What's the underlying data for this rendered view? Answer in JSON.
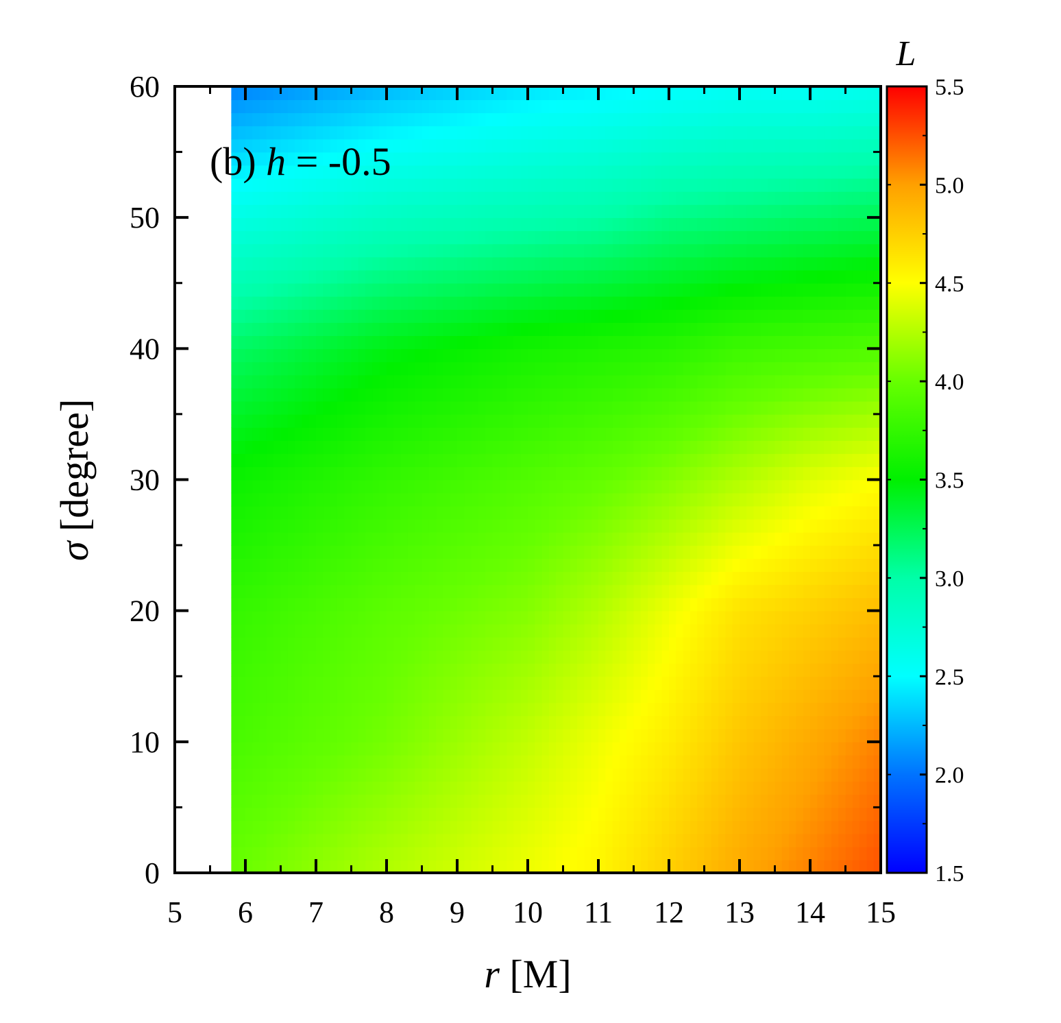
{
  "chart_data": {
    "type": "heatmap",
    "title": "",
    "panel_label": {
      "prefix": "(b) ",
      "variable": "h",
      "relation": " = -0.5"
    },
    "xlabel": {
      "variable": "r",
      "unit": " [M]"
    },
    "ylabel": {
      "variable": "σ",
      "unit": " [degree]"
    },
    "xlim": [
      5,
      15
    ],
    "ylim": [
      0,
      60
    ],
    "x_ticks": [
      "5",
      "6",
      "7",
      "8",
      "9",
      "10",
      "11",
      "12",
      "13",
      "14",
      "15"
    ],
    "y_ticks": [
      "0",
      "10",
      "20",
      "30",
      "40",
      "50",
      "60"
    ],
    "data_region": {
      "r_min": 5.8,
      "r_max": 15,
      "sigma_min": 0,
      "sigma_max": 60
    },
    "colorbar": {
      "label": "L",
      "range": [
        1.5,
        5.5
      ],
      "ticks": [
        "1.5",
        "2.0",
        "2.5",
        "3.0",
        "3.5",
        "4.0",
        "4.5",
        "5.0",
        "5.5"
      ],
      "colormap": [
        {
          "value": 1.5,
          "color": "#0000ff"
        },
        {
          "value": 2.0,
          "color": "#0073ff"
        },
        {
          "value": 2.5,
          "color": "#00ffff"
        },
        {
          "value": 3.0,
          "color": "#00ffa8"
        },
        {
          "value": 3.5,
          "color": "#00f000"
        },
        {
          "value": 4.0,
          "color": "#66ff00"
        },
        {
          "value": 4.5,
          "color": "#ffff00"
        },
        {
          "value": 5.0,
          "color": "#ffa000"
        },
        {
          "value": 5.5,
          "color": "#ff0000"
        }
      ]
    },
    "sampled_values": {
      "r": [
        5.8,
        8,
        10,
        11,
        12,
        13,
        14,
        15
      ],
      "sigma": [
        0,
        10,
        20,
        30,
        40,
        50,
        60
      ],
      "L": [
        [
          4.0,
          4.25,
          4.45,
          4.55,
          4.75,
          4.95,
          5.1,
          5.25
        ],
        [
          3.85,
          4.05,
          4.3,
          4.45,
          4.6,
          4.8,
          4.95,
          5.1
        ],
        [
          3.75,
          3.95,
          4.1,
          4.25,
          4.45,
          4.65,
          4.75,
          4.85
        ],
        [
          3.55,
          3.75,
          3.9,
          3.98,
          4.1,
          4.25,
          4.4,
          4.5
        ],
        [
          3.2,
          3.45,
          3.6,
          3.65,
          3.7,
          3.8,
          3.85,
          3.9
        ],
        [
          2.65,
          2.85,
          2.95,
          3.0,
          3.1,
          3.15,
          3.2,
          3.25
        ],
        [
          2.05,
          2.25,
          2.4,
          2.45,
          2.5,
          2.55,
          2.55,
          2.6
        ]
      ]
    }
  }
}
